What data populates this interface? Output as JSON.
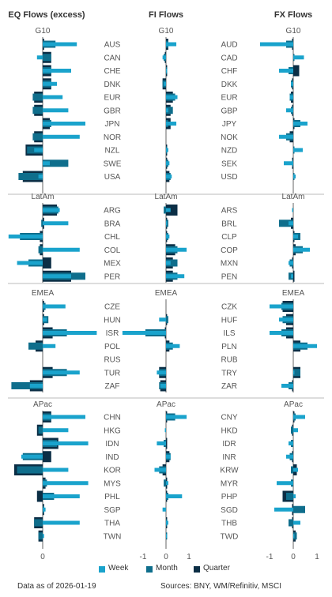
{
  "colors": {
    "week": "#1aa3cc",
    "month": "#0f6e8c",
    "quarter": "#0b2e45",
    "zero_line": "#666666",
    "separator": "#bbbbbb",
    "text": "#555555",
    "title": "#333333"
  },
  "footer": {
    "data_as_of": "Data as of 2026-01-19",
    "sources": "Sources:  BNY, WM/Refinitiv, MSCI"
  },
  "chart_data": [
    {
      "type": "bar",
      "orientation": "horizontal",
      "title": "EQ Flows (excess)",
      "xticks": [
        0
      ],
      "legend": [
        "Week",
        "Month",
        "Quarter"
      ],
      "legend_position": "bottom",
      "grid": false,
      "groups": [
        {
          "name": "G10",
          "categories": [
            "AUS",
            "CAN",
            "CHE",
            "DNK",
            "EUR",
            "GBR",
            "JPN",
            "NOR",
            "NZL",
            "SWE",
            "USA"
          ],
          "series": [
            {
              "name": "Quarter",
              "values": [
                0.05,
                0.3,
                0.3,
                0.3,
                -0.3,
                -0.3,
                0.25,
                -0.3,
                -0.6,
                0.0,
                -0.7
              ]
            },
            {
              "name": "Month",
              "values": [
                0.45,
                0.3,
                0.3,
                0.3,
                -0.35,
                -0.35,
                0.3,
                -0.35,
                -0.55,
                0.9,
                -0.85
              ]
            },
            {
              "name": "Week",
              "values": [
                1.2,
                -0.2,
                1.0,
                0.5,
                0.7,
                0.9,
                1.5,
                1.3,
                -0.3,
                0.25,
                -0.15
              ]
            }
          ]
        },
        {
          "name": "LatAm",
          "categories": [
            "ARG",
            "BRA",
            "CHL",
            "COL",
            "MEX",
            "PER"
          ],
          "series": [
            {
              "name": "Quarter",
              "values": [
                0.5,
                0.05,
                -0.1,
                -0.1,
                0.3,
                1.0
              ]
            },
            {
              "name": "Month",
              "values": [
                0.55,
                -0.05,
                -0.8,
                -0.15,
                -0.5,
                1.5
              ]
            },
            {
              "name": "Week",
              "values": [
                0.6,
                0.9,
                -1.2,
                1.3,
                -0.9,
                1.0
              ]
            }
          ]
        },
        {
          "name": "EMEA",
          "categories": [
            "CZE",
            "HUN",
            "ISR",
            "POL",
            "RUS",
            "TUR",
            "ZAF"
          ],
          "series": [
            {
              "name": "Quarter",
              "values": [
                0.05,
                0.05,
                0.35,
                -0.25,
                0.0,
                0.35,
                -0.45
              ]
            },
            {
              "name": "Month",
              "values": [
                0.1,
                0.2,
                0.85,
                -0.5,
                0.0,
                0.85,
                -1.1
              ]
            },
            {
              "name": "Week",
              "values": [
                0.8,
                0.15,
                1.9,
                0.45,
                0.0,
                1.3,
                -0.45
              ]
            }
          ]
        },
        {
          "name": "APac",
          "categories": [
            "CHN",
            "HKG",
            "IDN",
            "IND",
            "KOR",
            "MYS",
            "PHL",
            "SGP",
            "THA",
            "TWN"
          ],
          "series": [
            {
              "name": "Quarter",
              "values": [
                0.3,
                -0.2,
                0.55,
                0.3,
                -1.0,
                0.1,
                -0.2,
                0.05,
                -0.3,
                -0.15
              ]
            },
            {
              "name": "Month",
              "values": [
                0.3,
                -0.15,
                0.5,
                -0.7,
                -0.9,
                0.15,
                0.4,
                0.05,
                -0.3,
                -0.15
              ]
            },
            {
              "name": "Week",
              "values": [
                1.5,
                0.9,
                1.6,
                -0.75,
                0.9,
                1.6,
                1.3,
                0.1,
                1.3,
                0.05
              ]
            }
          ]
        }
      ]
    },
    {
      "type": "bar",
      "orientation": "horizontal",
      "title": "FI Flows",
      "xticks": [
        -1,
        0,
        1
      ],
      "grid": false,
      "groups": [
        {
          "name": "G10",
          "categories": [
            "AUS",
            "CAN",
            "CHE",
            "DNK",
            "EUR",
            "GBR",
            "JPN",
            "NOR",
            "NZL",
            "SWE",
            "USA"
          ],
          "series": [
            {
              "name": "Quarter",
              "values": [
                0.1,
                -0.05,
                0.05,
                -0.15,
                0.3,
                0.2,
                0.2,
                0.0,
                0.05,
                0.05,
                0.15
              ]
            },
            {
              "name": "Month",
              "values": [
                0.1,
                -0.1,
                0.05,
                -0.15,
                0.4,
                0.3,
                0.1,
                0.0,
                0.05,
                0.1,
                0.2
              ]
            },
            {
              "name": "Week",
              "values": [
                0.45,
                -0.15,
                0.05,
                -0.1,
                0.5,
                0.1,
                0.45,
                0.0,
                0.1,
                0.15,
                0.25
              ]
            }
          ]
        },
        {
          "name": "LatAm",
          "categories": [
            "ARG",
            "BRA",
            "CHL",
            "COL",
            "MEX",
            "PER"
          ],
          "series": [
            {
              "name": "Quarter",
              "values": [
                0.5,
                0.05,
                0.05,
                0.4,
                0.3,
                0.3
              ]
            },
            {
              "name": "Month",
              "values": [
                -0.1,
                0.1,
                0.1,
                0.5,
                0.5,
                0.5
              ]
            },
            {
              "name": "Week",
              "values": [
                0.2,
                0.05,
                0.15,
                0.9,
                0.2,
                0.8
              ]
            }
          ]
        },
        {
          "name": "EMEA",
          "categories": [
            "CZE",
            "HUN",
            "ISR",
            "POL",
            "RUS",
            "TUR",
            "ZAF"
          ],
          "series": [
            {
              "name": "Quarter",
              "values": [
                0.0,
                0.05,
                -0.05,
                0.15,
                0.0,
                -0.3,
                -0.25
              ]
            },
            {
              "name": "Month",
              "values": [
                0.0,
                0.1,
                -0.9,
                0.3,
                0.0,
                -0.3,
                -0.3
              ]
            },
            {
              "name": "Week",
              "values": [
                0.0,
                -0.3,
                -1.9,
                0.6,
                0.0,
                -0.4,
                -0.25
              ]
            }
          ]
        },
        {
          "name": "APac",
          "categories": [
            "CHN",
            "HKG",
            "IDN",
            "IND",
            "KOR",
            "MYS",
            "PHL",
            "SGP",
            "THA",
            "TWN"
          ],
          "series": [
            {
              "name": "Quarter",
              "values": [
                0.05,
                0.0,
                0.05,
                0.15,
                -0.15,
                0.05,
                0.05,
                0.0,
                0.05,
                0.0
              ]
            },
            {
              "name": "Month",
              "values": [
                0.4,
                0.0,
                -0.1,
                0.2,
                -0.3,
                -0.1,
                0.1,
                0.0,
                0.05,
                0.05
              ]
            },
            {
              "name": "Week",
              "values": [
                0.9,
                -0.05,
                -0.4,
                0.2,
                -0.5,
                0.1,
                0.7,
                -0.15,
                0.1,
                0.05
              ]
            }
          ]
        }
      ]
    },
    {
      "type": "bar",
      "orientation": "horizontal",
      "title": "FX Flows",
      "xticks": [
        -1,
        0,
        1
      ],
      "grid": false,
      "groups": [
        {
          "name": "G10",
          "categories": [
            "AUD",
            "CAD",
            "CHF",
            "DKK",
            "EUR",
            "GBP",
            "JPY",
            "NOK",
            "NZD",
            "SEK",
            "USD"
          ],
          "series": [
            {
              "name": "Quarter",
              "values": [
                -0.05,
                0.0,
                0.25,
                -0.05,
                -0.1,
                -0.05,
                0.05,
                -0.15,
                0.0,
                -0.05,
                0.0
              ]
            },
            {
              "name": "Month",
              "values": [
                -0.3,
                0.05,
                -0.2,
                -0.1,
                -0.15,
                -0.1,
                0.3,
                -0.3,
                0.05,
                -0.05,
                0.05
              ]
            },
            {
              "name": "Week",
              "values": [
                -1.4,
                0.45,
                -0.6,
                -0.1,
                -0.15,
                -0.3,
                0.6,
                -0.6,
                0.4,
                -0.4,
                0.1
              ]
            }
          ]
        },
        {
          "name": "LatAm",
          "categories": [
            "ARS",
            "BRL",
            "CLP",
            "COP",
            "MXN",
            "PEN"
          ],
          "series": [
            {
              "name": "Quarter",
              "values": [
                0.0,
                -0.1,
                0.05,
                0.1,
                -0.05,
                0.05
              ]
            },
            {
              "name": "Month",
              "values": [
                0.0,
                -0.6,
                0.3,
                0.4,
                -0.15,
                -0.2
              ]
            },
            {
              "name": "Week",
              "values": [
                -0.05,
                -0.2,
                0.2,
                0.7,
                -0.2,
                -0.1
              ]
            }
          ]
        },
        {
          "name": "EMEA",
          "categories": [
            "CZK",
            "HUF",
            "ILS",
            "PLN",
            "RUB",
            "TRY",
            "ZAR"
          ],
          "series": [
            {
              "name": "Quarter",
              "values": [
                -0.45,
                -0.3,
                -0.3,
                0.3,
                0.0,
                0.3,
                -0.05
              ]
            },
            {
              "name": "Month",
              "values": [
                -0.5,
                -0.45,
                -0.5,
                0.6,
                0.0,
                0.3,
                -0.2
              ]
            },
            {
              "name": "Week",
              "values": [
                -1.0,
                -0.6,
                -1.0,
                1.0,
                0.0,
                0.05,
                -0.5
              ]
            }
          ]
        },
        {
          "name": "APac",
          "categories": [
            "CNY",
            "HKD",
            "IDR",
            "INR",
            "KRW",
            "MYR",
            "PHP",
            "SGD",
            "THB",
            "TWD"
          ],
          "series": [
            {
              "name": "Quarter",
              "values": [
                0.05,
                -0.05,
                0.0,
                -0.05,
                0.15,
                0.0,
                -0.45,
                -0.05,
                -0.05,
                0.1
              ]
            },
            {
              "name": "Month",
              "values": [
                0.1,
                -0.1,
                -0.1,
                -0.15,
                -0.1,
                -0.1,
                -0.3,
                0.5,
                -0.2,
                0.15
              ]
            },
            {
              "name": "Week",
              "values": [
                0.5,
                0.2,
                -0.2,
                -0.3,
                0.2,
                -0.7,
                0.1,
                -0.8,
                0.3,
                0.05
              ]
            }
          ]
        }
      ]
    }
  ]
}
